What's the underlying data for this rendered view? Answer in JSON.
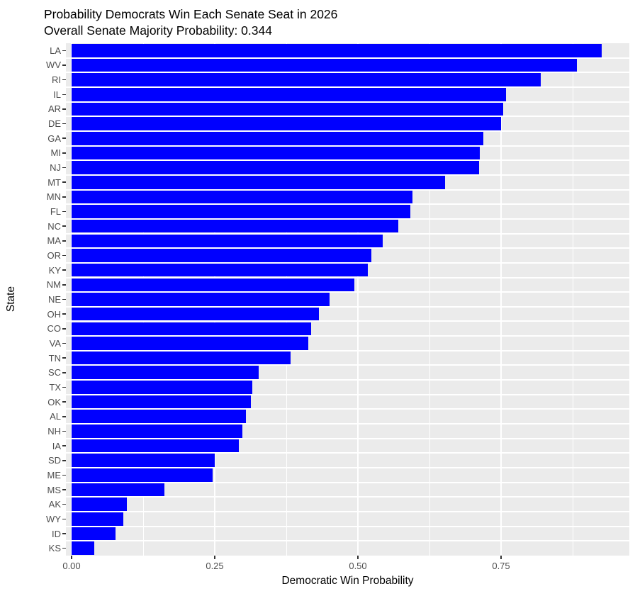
{
  "chart_data": {
    "type": "bar",
    "orientation": "horizontal",
    "title": "Probability Democrats Win Each Senate Seat in 2026",
    "subtitle": "Overall Senate Majority Probability: 0.344",
    "xlabel": "Democratic Win Probability",
    "ylabel": "State",
    "xlim": [
      0,
      0.974
    ],
    "grid": true,
    "legend_position": "none",
    "x_ticks": [
      {
        "value": 0.0,
        "label": "0.00"
      },
      {
        "value": 0.25,
        "label": "0.25"
      },
      {
        "value": 0.5,
        "label": "0.50"
      },
      {
        "value": 0.75,
        "label": "0.75"
      }
    ],
    "x_minor_gridlines": [
      0.125,
      0.375,
      0.625,
      0.875
    ],
    "colors": {
      "bar": "#0000FF",
      "panel_background": "#EBEBEB",
      "gridline": "#FFFFFF",
      "axis_text": "#4D4D4D",
      "axis_ticks": "#333333",
      "title_text": "#000000"
    },
    "categories": [
      "LA",
      "WV",
      "RI",
      "IL",
      "AR",
      "DE",
      "GA",
      "MI",
      "NJ",
      "MT",
      "MN",
      "FL",
      "NC",
      "MA",
      "OR",
      "KY",
      "NM",
      "NE",
      "OH",
      "CO",
      "VA",
      "TN",
      "SC",
      "TX",
      "OK",
      "AL",
      "NH",
      "IA",
      "SD",
      "ME",
      "MS",
      "AK",
      "WY",
      "ID",
      "KS"
    ],
    "values": [
      0.926,
      0.883,
      0.819,
      0.759,
      0.754,
      0.75,
      0.719,
      0.713,
      0.712,
      0.652,
      0.595,
      0.592,
      0.571,
      0.543,
      0.524,
      0.517,
      0.494,
      0.45,
      0.432,
      0.418,
      0.413,
      0.382,
      0.327,
      0.316,
      0.313,
      0.305,
      0.298,
      0.292,
      0.25,
      0.246,
      0.162,
      0.097,
      0.09,
      0.077,
      0.04
    ]
  }
}
